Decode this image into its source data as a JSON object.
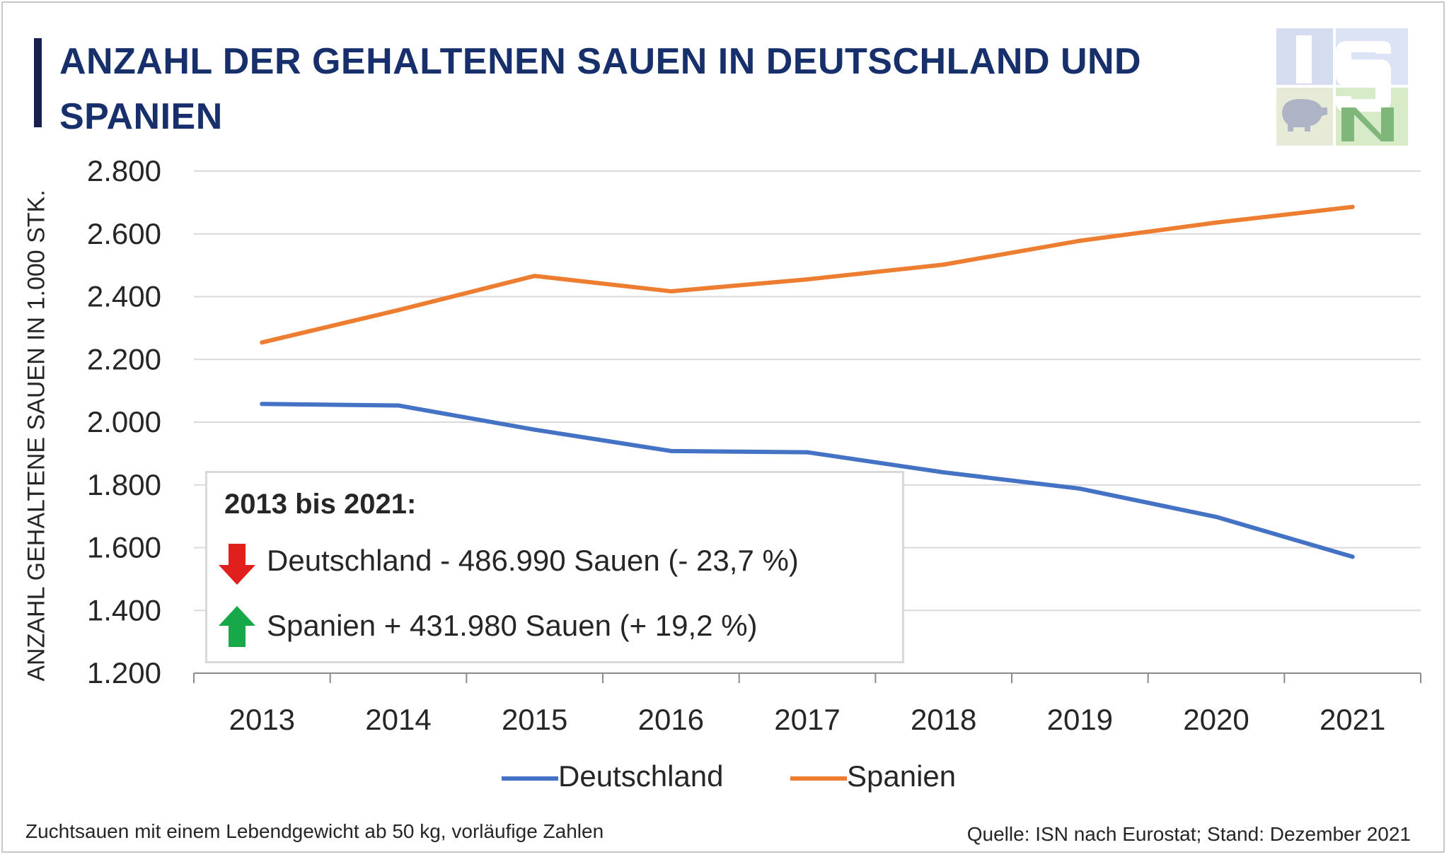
{
  "title": "ANZAHL DER GEHALTENEN SAUEN IN DEUTSCHLAND UND SPANIEN",
  "logo": {
    "name": "ISN logo",
    "letters": "ISN"
  },
  "colors": {
    "deutschland": "#4472c4",
    "spanien": "#ed7d31",
    "title": "#17306b",
    "down_arrow": "#e0201d",
    "up_arrow": "#17a849"
  },
  "info_box": {
    "heading": "2013 bis 2021:",
    "rows": [
      {
        "icon": "red-down-arrow-icon",
        "text": "Deutschland - 486.990 Sauen (- 23,7 %)"
      },
      {
        "icon": "green-up-arrow-icon",
        "text": "Spanien + 431.980 Sauen (+ 19,2 %)"
      }
    ]
  },
  "footnote": "Zuchtsauen mit einem Lebendgewicht ab 50 kg, vorläufige Zahlen",
  "source": "Quelle: ISN nach Eurostat; Stand: Dezember 2021",
  "chart_data": {
    "type": "line",
    "title": "ANZAHL DER GEHALTENEN SAUEN IN DEUTSCHLAND UND SPANIEN",
    "xlabel": "",
    "ylabel": "ANZAHL GEHALTENE SAUEN IN 1.000 STK.",
    "categories": [
      "2013",
      "2014",
      "2015",
      "2016",
      "2017",
      "2018",
      "2019",
      "2020",
      "2021"
    ],
    "ylim": [
      1200,
      2800
    ],
    "yticks": [
      1200,
      1400,
      1600,
      1800,
      2000,
      2200,
      2400,
      2600,
      2800
    ],
    "ytick_labels": [
      "1.200",
      "1.400",
      "1.600",
      "1.800",
      "2.000",
      "2.200",
      "2.400",
      "2.600",
      "2.800"
    ],
    "grid": true,
    "legend_position": "bottom",
    "series": [
      {
        "name": "Deutschland",
        "color": "#4472c4",
        "values": [
          2058,
          2053,
          1976,
          1908,
          1904,
          1840,
          1788,
          1698,
          1571
        ]
      },
      {
        "name": "Spanien",
        "color": "#ed7d31",
        "values": [
          2254,
          2357,
          2466,
          2417,
          2455,
          2502,
          2578,
          2636,
          2686
        ]
      }
    ]
  }
}
